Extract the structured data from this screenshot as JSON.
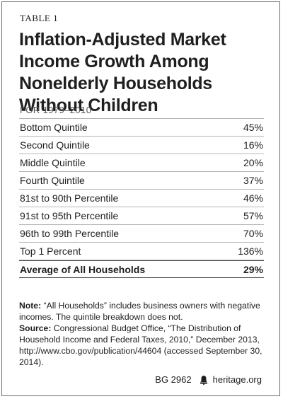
{
  "table_label": "TABLE 1",
  "title": "Inflation-Adjusted Market Income Growth Among Nonelderly Households Without Children",
  "subtitle": "FOR 1979–2010",
  "rows": [
    {
      "label": "Bottom Quintile",
      "value": "45%"
    },
    {
      "label": "Second Quintile",
      "value": "16%"
    },
    {
      "label": "Middle Quintile",
      "value": "20%"
    },
    {
      "label": "Fourth Quintile",
      "value": "37%"
    },
    {
      "label": "81st to 90th Percentile",
      "value": "46%"
    },
    {
      "label": "91st to 95th Percentile",
      "value": "57%"
    },
    {
      "label": "96th to 99th Percentile",
      "value": "70%"
    },
    {
      "label": "Top 1 Percent",
      "value": "136%"
    }
  ],
  "total": {
    "label": "Average of All Households",
    "value": "29%"
  },
  "note": {
    "label": "Note:",
    "text": "“All Households” includes business owners with negative incomes. The quintile breakdown does not."
  },
  "source": {
    "label": "Source:",
    "text": "Congressional Budget Office, “The Distribution of Household Income and Federal Taxes, 2010,” December 2013, http://www.cbo.gov/publication/44604 (accessed September 30, 2014)."
  },
  "footer": {
    "code": "BG 2962",
    "icon": "bell-icon",
    "site": "heritage.org"
  }
}
